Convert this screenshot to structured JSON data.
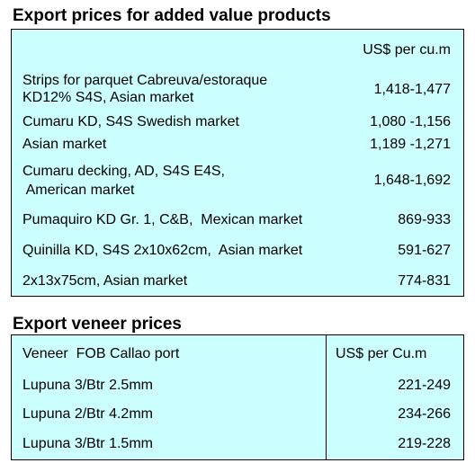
{
  "section1": {
    "title": "Export prices for added value products",
    "unit_header": "US$ per cu.m",
    "rows": [
      {
        "line1": "Strips for parquet Cabreuva/estoraque",
        "line2": "KD12% S4S, Asian market",
        "price": "1,418-1,477"
      },
      {
        "line1": "Cumaru KD, S4S Swedish market",
        "price": "1,080 -1,156"
      },
      {
        "line1": "Asian market",
        "price": "1,189 -1,271"
      },
      {
        "line1": "Cumaru decking, AD, S4S E4S,",
        "line2": " American market",
        "price": "1,648-1,692"
      },
      {
        "line1": "Pumaquiro KD Gr. 1, C&B,  Mexican market",
        "price": "869-933"
      },
      {
        "line1": "Quinilla KD, S4S 2x10x62cm,  Asian market",
        "price": "591-627"
      },
      {
        "line1": "2x13x75cm, Asian market",
        "price": "774-831"
      }
    ]
  },
  "section2": {
    "title": "Export veneer prices",
    "header_label": "Veneer  FOB Callao port",
    "unit_header": "US$ per Cu.m",
    "rows": [
      {
        "label": "Lupuna 3/Btr 2.5mm",
        "price": "221-249"
      },
      {
        "label": "Lupuna 2/Btr 4.2mm",
        "price": "234-266"
      },
      {
        "label": "Lupuna 3/Btr 1.5mm",
        "price": "219-228"
      }
    ]
  }
}
